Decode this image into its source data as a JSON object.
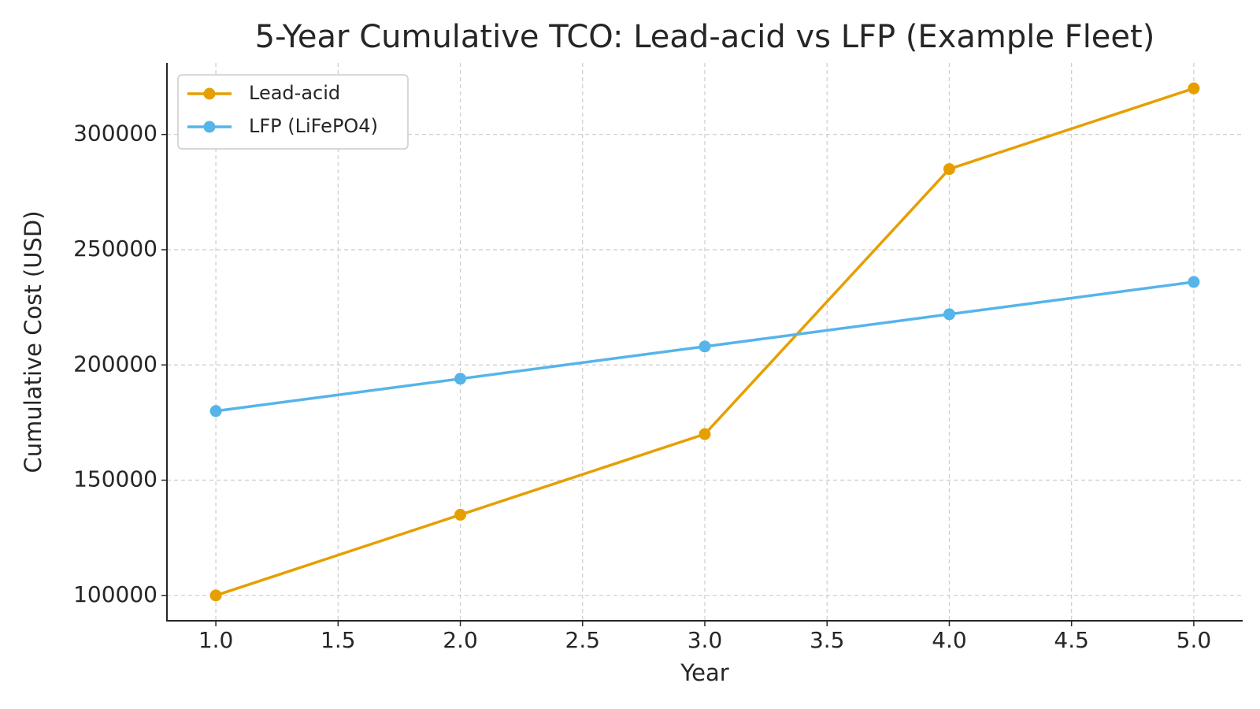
{
  "chart_data": {
    "type": "line",
    "title": "5-Year Cumulative TCO: Lead-acid vs LFP (Example Fleet)",
    "x_label": "Year",
    "y_label": "Cumulative Cost (USD)",
    "x": [
      1,
      2,
      3,
      4,
      5
    ],
    "series": [
      {
        "name": "Lead-acid",
        "color": "#e69f00",
        "values": [
          100000,
          135000,
          170000,
          285000,
          320000
        ]
      },
      {
        "name": "LFP (LiFePO4)",
        "color": "#56b4e9",
        "values": [
          180000,
          194000,
          208000,
          222000,
          236000
        ]
      }
    ],
    "xlim": [
      0.8,
      5.2
    ],
    "xticks": [
      {
        "value": 1,
        "label": "1.0"
      },
      1.5,
      {
        "value": 2,
        "label": "2.0"
      },
      2.5,
      {
        "value": 3,
        "label": "3.0"
      },
      3.5,
      {
        "value": 4,
        "label": "4.0"
      },
      4.5,
      {
        "value": 5,
        "label": "5.0"
      }
    ],
    "ylim": [
      89000,
      331000
    ],
    "yticks": [
      100000,
      150000,
      200000,
      250000,
      300000
    ],
    "grid": true,
    "legend": "upper left"
  }
}
